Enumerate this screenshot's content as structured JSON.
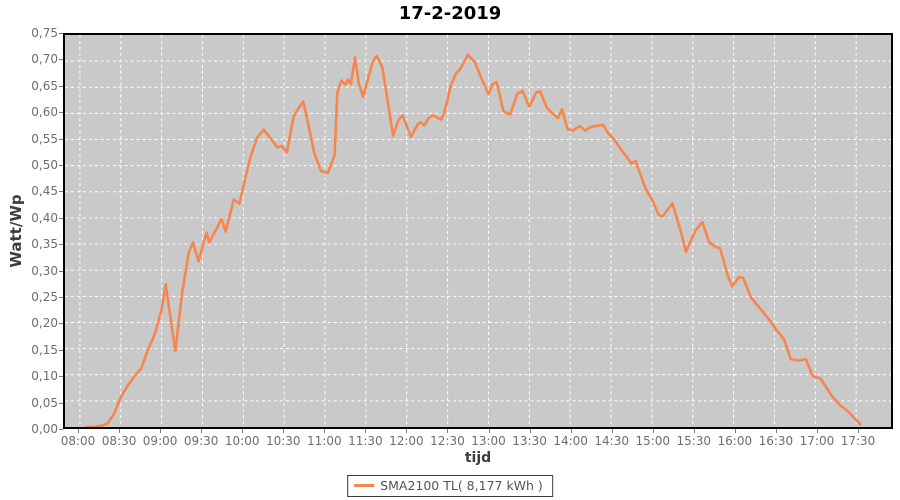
{
  "title": "17-2-2019",
  "axes": {
    "y_title": "Watt/Wp",
    "x_title": "tijd"
  },
  "legend": {
    "label": "SMA2100 TL( 8,177 kWh )"
  },
  "colors": {
    "line": "#f6864e",
    "plot_background": "#c9c9c9",
    "gridline": "#ffffff",
    "tick_label": "#6e6e6e",
    "axis_title": "#3d3d3d",
    "title": "#000000",
    "plot_border": "#000000"
  },
  "chart_data": {
    "type": "line",
    "title": "17-2-2019",
    "xlabel": "tijd",
    "ylabel": "Watt/Wp",
    "ylim": [
      0,
      0.75
    ],
    "y_tick_step": 0.05,
    "y_tick_labels": [
      "0,00",
      "0,05",
      "0,10",
      "0,15",
      "0,20",
      "0,25",
      "0,30",
      "0,35",
      "0,40",
      "0,45",
      "0,50",
      "0,55",
      "0,60",
      "0,65",
      "0,70",
      "0,75"
    ],
    "x_tick_labels": [
      "08:00",
      "08:30",
      "09:00",
      "09:30",
      "10:00",
      "10:30",
      "11:00",
      "11:30",
      "12:00",
      "12:30",
      "13:00",
      "13:30",
      "14:00",
      "14:30",
      "15:00",
      "15:30",
      "16:00",
      "16:30",
      "17:00",
      "17:30"
    ],
    "x_range_minutes": [
      "08:00",
      "17:30"
    ],
    "grid": "white dashed, both axes",
    "legend_position": "bottom-center",
    "series": [
      {
        "name": "SMA2100 TL( 8,177 kWh )",
        "color": "#f6864e",
        "points": [
          [
            "08:05",
            0.0
          ],
          [
            "08:10",
            0.0
          ],
          [
            "08:15",
            0.002
          ],
          [
            "08:20",
            0.006
          ],
          [
            "08:25",
            0.025
          ],
          [
            "08:30",
            0.057
          ],
          [
            "08:35",
            0.079
          ],
          [
            "08:40",
            0.097
          ],
          [
            "08:45",
            0.112
          ],
          [
            "08:50",
            0.148
          ],
          [
            "08:55",
            0.178
          ],
          [
            "09:00",
            0.225
          ],
          [
            "09:03",
            0.273
          ],
          [
            "09:10",
            0.145
          ],
          [
            "09:15",
            0.255
          ],
          [
            "09:20",
            0.335
          ],
          [
            "09:23",
            0.353
          ],
          [
            "09:27",
            0.317
          ],
          [
            "09:33",
            0.372
          ],
          [
            "09:35",
            0.353
          ],
          [
            "09:44",
            0.398
          ],
          [
            "09:47",
            0.374
          ],
          [
            "09:53",
            0.435
          ],
          [
            "09:57",
            0.427
          ],
          [
            "10:05",
            0.515
          ],
          [
            "10:10",
            0.553
          ],
          [
            "10:15",
            0.569
          ],
          [
            "10:20",
            0.552
          ],
          [
            "10:25",
            0.535
          ],
          [
            "10:28",
            0.538
          ],
          [
            "10:32",
            0.526
          ],
          [
            "10:37",
            0.595
          ],
          [
            "10:44",
            0.623
          ],
          [
            "10:48",
            0.575
          ],
          [
            "10:52",
            0.525
          ],
          [
            "10:57",
            0.49
          ],
          [
            "11:02",
            0.486
          ],
          [
            "11:07",
            0.52
          ],
          [
            "11:09",
            0.639
          ],
          [
            "11:12",
            0.663
          ],
          [
            "11:15",
            0.655
          ],
          [
            "11:17",
            0.665
          ],
          [
            "11:19",
            0.656
          ],
          [
            "11:22",
            0.707
          ],
          [
            "11:25",
            0.655
          ],
          [
            "11:28",
            0.632
          ],
          [
            "11:35",
            0.699
          ],
          [
            "11:38",
            0.71
          ],
          [
            "11:42",
            0.689
          ],
          [
            "11:46",
            0.623
          ],
          [
            "11:50",
            0.557
          ],
          [
            "11:54",
            0.588
          ],
          [
            "11:57",
            0.596
          ],
          [
            "12:03",
            0.555
          ],
          [
            "12:08",
            0.579
          ],
          [
            "12:10",
            0.583
          ],
          [
            "12:13",
            0.577
          ],
          [
            "12:16",
            0.591
          ],
          [
            "12:19",
            0.596
          ],
          [
            "12:22",
            0.593
          ],
          [
            "12:25",
            0.588
          ],
          [
            "12:27",
            0.598
          ],
          [
            "12:30",
            0.626
          ],
          [
            "12:32",
            0.651
          ],
          [
            "12:36",
            0.676
          ],
          [
            "12:39",
            0.684
          ],
          [
            "12:45",
            0.712
          ],
          [
            "12:50",
            0.698
          ],
          [
            "12:56",
            0.66
          ],
          [
            "13:00",
            0.637
          ],
          [
            "13:03",
            0.656
          ],
          [
            "13:06",
            0.66
          ],
          [
            "13:11",
            0.604
          ],
          [
            "13:16",
            0.598
          ],
          [
            "13:21",
            0.637
          ],
          [
            "13:25",
            0.643
          ],
          [
            "13:30",
            0.613
          ],
          [
            "13:35",
            0.64
          ],
          [
            "13:38",
            0.642
          ],
          [
            "13:43",
            0.61
          ],
          [
            "13:47",
            0.6
          ],
          [
            "13:51",
            0.591
          ],
          [
            "13:54",
            0.608
          ],
          [
            "13:58",
            0.57
          ],
          [
            "14:02",
            0.567
          ],
          [
            "14:07",
            0.576
          ],
          [
            "14:11",
            0.567
          ],
          [
            "14:15",
            0.574
          ],
          [
            "14:19",
            0.576
          ],
          [
            "14:24",
            0.578
          ],
          [
            "14:28",
            0.562
          ],
          [
            "14:33",
            0.548
          ],
          [
            "14:38",
            0.528
          ],
          [
            "14:41",
            0.519
          ],
          [
            "14:45",
            0.504
          ],
          [
            "14:48",
            0.509
          ],
          [
            "14:52",
            0.48
          ],
          [
            "14:56",
            0.452
          ],
          [
            "15:00",
            0.436
          ],
          [
            "15:05",
            0.406
          ],
          [
            "15:08",
            0.403
          ],
          [
            "15:15",
            0.428
          ],
          [
            "15:22",
            0.367
          ],
          [
            "15:25",
            0.335
          ],
          [
            "15:32",
            0.376
          ],
          [
            "15:37",
            0.392
          ],
          [
            "15:42",
            0.354
          ],
          [
            "15:47",
            0.344
          ],
          [
            "15:50",
            0.342
          ],
          [
            "15:56",
            0.287
          ],
          [
            "15:59",
            0.269
          ],
          [
            "16:04",
            0.287
          ],
          [
            "16:07",
            0.285
          ],
          [
            "16:13",
            0.247
          ],
          [
            "16:20",
            0.225
          ],
          [
            "16:26",
            0.206
          ],
          [
            "16:31",
            0.187
          ],
          [
            "16:37",
            0.168
          ],
          [
            "16:42",
            0.13
          ],
          [
            "16:48",
            0.127
          ],
          [
            "16:53",
            0.13
          ],
          [
            "16:58",
            0.098
          ],
          [
            "17:04",
            0.092
          ],
          [
            "17:12",
            0.06
          ],
          [
            "17:18",
            0.042
          ],
          [
            "17:24",
            0.03
          ],
          [
            "17:33",
            0.005
          ]
        ]
      }
    ]
  }
}
